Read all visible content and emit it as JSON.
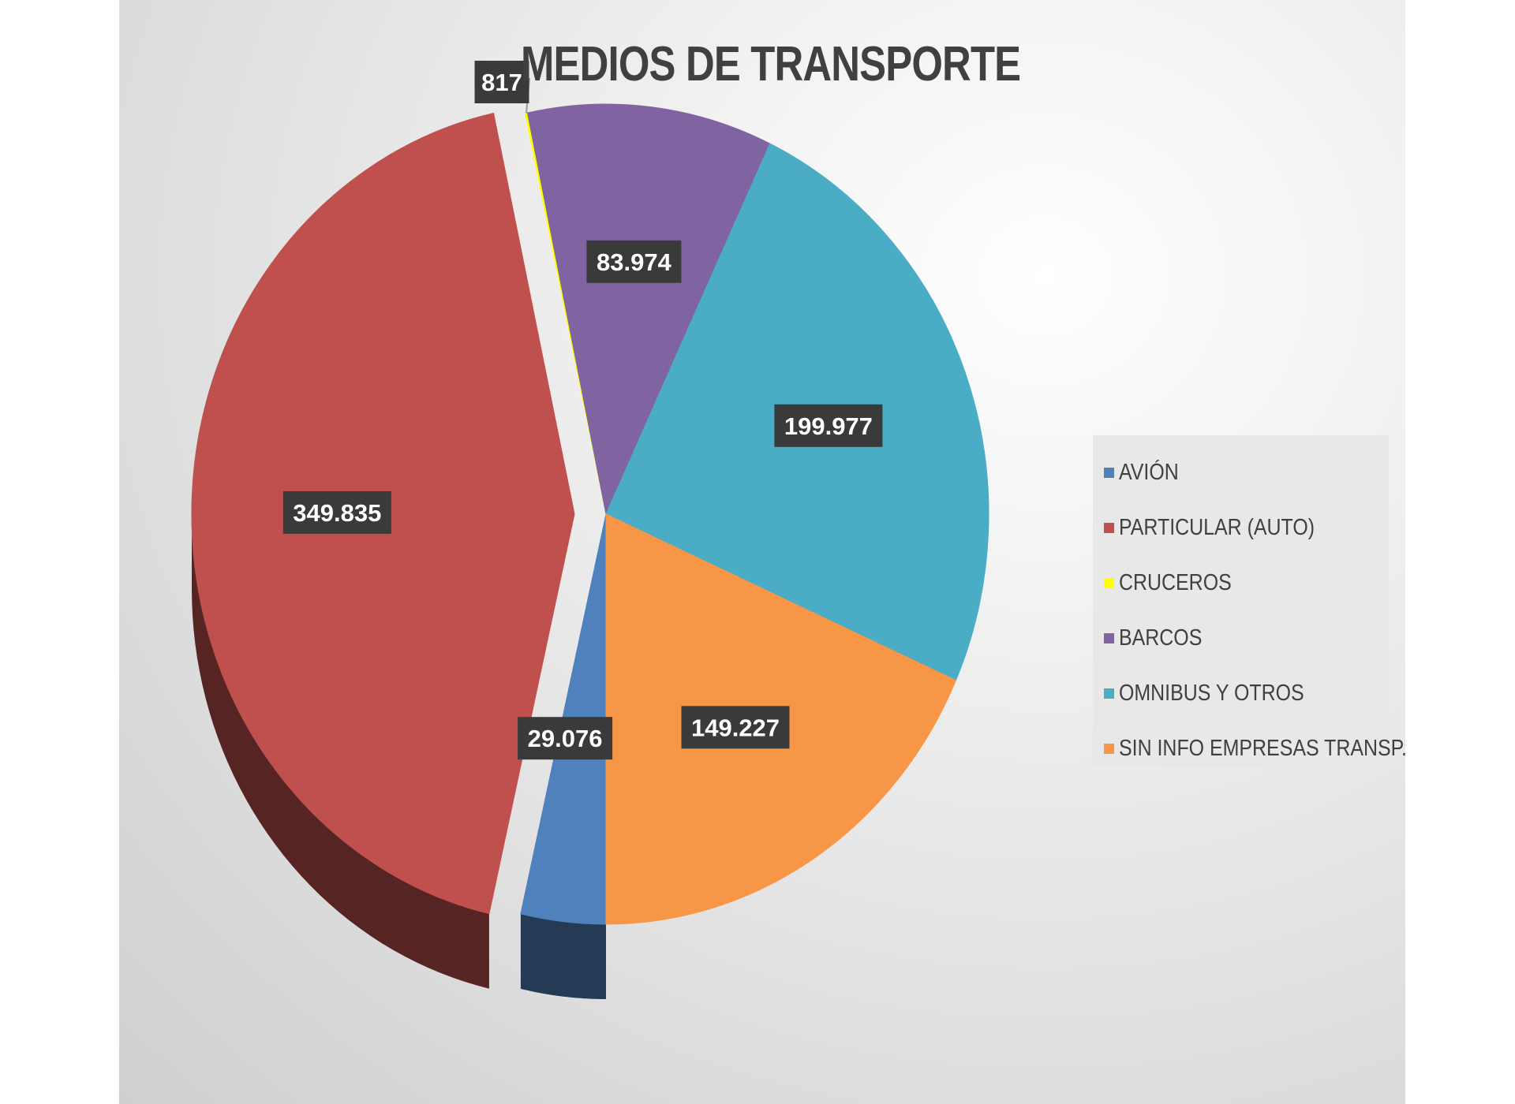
{
  "chart_data": {
    "type": "pie",
    "title": "MEDIOS DE TRANSPORTE",
    "legend_position": "right",
    "slices": [
      {
        "label": "AVIÓN",
        "value": 29076,
        "display": "29.076",
        "color": "#4F81BD"
      },
      {
        "label": "PARTICULAR (AUTO)",
        "value": 349835,
        "display": "349.835",
        "color": "#C0504D"
      },
      {
        "label": "CRUCEROS",
        "value": 817,
        "display": "817",
        "color": "#FFFF00"
      },
      {
        "label": "BARCOS",
        "value": 83974,
        "display": "83.974",
        "color": "#8064A2"
      },
      {
        "label": "OMNIBUS Y OTROS",
        "value": 199977,
        "display": "199.977",
        "color": "#4BACC6"
      },
      {
        "label": "SIN INFO EMPRESAS TRANSP.",
        "value": 149227,
        "display": "149.227",
        "color": "#F79646"
      }
    ]
  }
}
